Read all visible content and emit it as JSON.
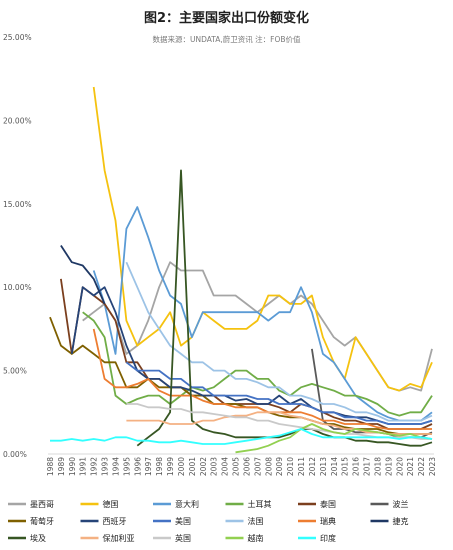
{
  "chart_data": {
    "type": "line",
    "title": "图2：主要国家出口份额变化",
    "subtitle": "数据来源：UNDATA,蔚卫资讯 注：FOB价值",
    "xlabel": "",
    "ylabel": "",
    "ylim": [
      0,
      25
    ],
    "y_ticks": [
      "0.00%",
      "5.00%",
      "10.00%",
      "15.00%",
      "20.00%",
      "25.00%"
    ],
    "y_tick_values": [
      0,
      5,
      10,
      15,
      20,
      25
    ],
    "grid": false,
    "legend_position": "bottom",
    "x": [
      "1988",
      "1989",
      "1990",
      "1991",
      "1992",
      "1993",
      "1994",
      "1995",
      "1996",
      "1997",
      "1998",
      "1999",
      "2000",
      "2001",
      "2002",
      "2003",
      "2004",
      "2005",
      "2006",
      "2007",
      "2008",
      "2009",
      "2010",
      "2011",
      "2012",
      "2013",
      "2014",
      "2015",
      "2016",
      "2017",
      "2018",
      "2019",
      "2020",
      "2021",
      "2022",
      "2023"
    ],
    "series": [
      {
        "name": "墨西哥",
        "color": "#a5a5a5",
        "values": [
          null,
          null,
          null,
          8.0,
          8.5,
          9.0,
          8.0,
          6.0,
          6.5,
          8.0,
          10.0,
          11.5,
          11.0,
          11.0,
          11.0,
          9.5,
          9.5,
          9.5,
          9.0,
          8.5,
          9.0,
          9.5,
          9.0,
          9.5,
          9.0,
          8.0,
          7.0,
          6.5,
          7.0,
          6.0,
          5.0,
          4.0,
          3.8,
          4.0,
          3.8,
          6.3
        ]
      },
      {
        "name": "德国",
        "color": "#f5c20f",
        "values": [
          null,
          null,
          null,
          null,
          22.0,
          17.0,
          14.0,
          8.0,
          6.5,
          7.0,
          7.5,
          8.5,
          6.5,
          7.0,
          8.5,
          8.0,
          7.5,
          7.5,
          7.5,
          8.0,
          9.5,
          9.5,
          9.0,
          9.0,
          9.5,
          7.0,
          5.5,
          4.5,
          7.0,
          6.0,
          5.0,
          4.0,
          3.8,
          4.2,
          4.0,
          5.5
        ]
      },
      {
        "name": "意大利",
        "color": "#5b9bd5",
        "values": [
          null,
          null,
          null,
          null,
          11.0,
          9.0,
          6.0,
          13.5,
          14.8,
          13.0,
          11.0,
          9.5,
          9.0,
          7.0,
          8.5,
          8.5,
          8.5,
          8.5,
          8.5,
          8.5,
          8.0,
          8.5,
          8.5,
          10.0,
          8.5,
          6.0,
          5.5,
          4.5,
          3.5,
          3.0,
          2.5,
          2.2,
          2.0,
          2.0,
          2.0,
          2.5
        ]
      },
      {
        "name": "土耳其",
        "color": "#70ad47",
        "values": [
          null,
          null,
          null,
          8.5,
          8.0,
          7.0,
          3.5,
          3.0,
          3.3,
          3.5,
          3.5,
          3.0,
          3.5,
          4.0,
          3.8,
          4.0,
          4.5,
          5.0,
          5.0,
          4.5,
          4.5,
          3.8,
          3.5,
          4.0,
          4.2,
          4.0,
          3.8,
          3.5,
          3.5,
          3.3,
          3.0,
          2.5,
          2.3,
          2.5,
          2.5,
          3.5
        ]
      },
      {
        "name": "泰国",
        "color": "#7b3f1e",
        "values": [
          null,
          10.5,
          6.0,
          10.0,
          9.5,
          9.0,
          8.0,
          5.5,
          5.5,
          4.5,
          4.5,
          4.0,
          4.0,
          3.5,
          3.5,
          3.5,
          3.0,
          3.0,
          3.0,
          3.0,
          3.0,
          2.8,
          2.5,
          3.0,
          2.8,
          2.5,
          2.2,
          2.0,
          2.0,
          1.8,
          1.8,
          1.5,
          1.5,
          1.5,
          1.5,
          1.8
        ]
      },
      {
        "name": "波兰",
        "color": "#595959",
        "values": [
          null,
          null,
          null,
          null,
          null,
          null,
          null,
          null,
          null,
          null,
          null,
          null,
          null,
          null,
          null,
          null,
          null,
          null,
          null,
          null,
          null,
          null,
          null,
          null,
          6.3,
          2.0,
          1.5,
          1.5,
          1.3,
          1.3,
          1.3,
          1.2,
          1.0,
          1.0,
          1.0,
          1.3
        ]
      },
      {
        "name": "葡萄牙",
        "color": "#7f6000",
        "values": [
          8.2,
          6.5,
          6.0,
          6.5,
          6.0,
          5.5,
          5.5,
          4.0,
          4.0,
          4.5,
          4.0,
          4.0,
          4.0,
          3.5,
          3.5,
          3.0,
          3.0,
          3.0,
          2.8,
          2.8,
          2.5,
          2.3,
          2.2,
          2.2,
          2.0,
          1.8,
          1.8,
          1.6,
          1.5,
          1.5,
          1.5,
          1.3,
          1.2,
          1.2,
          1.2,
          1.2
        ]
      },
      {
        "name": "西班牙",
        "color": "#264478",
        "values": [
          null,
          null,
          6.0,
          10.0,
          9.5,
          10.0,
          8.5,
          6.5,
          5.0,
          4.5,
          4.5,
          4.0,
          4.0,
          3.8,
          3.5,
          3.5,
          3.5,
          3.2,
          3.3,
          3.0,
          3.0,
          3.5,
          3.0,
          3.3,
          2.8,
          2.5,
          2.5,
          2.3,
          2.2,
          2.2,
          2.0,
          1.8,
          1.8,
          1.8,
          1.8,
          2.0
        ]
      },
      {
        "name": "美国",
        "color": "#4472c4",
        "values": [
          null,
          null,
          null,
          null,
          null,
          null,
          null,
          5.5,
          5.0,
          5.0,
          5.0,
          4.5,
          4.5,
          4.0,
          4.0,
          3.5,
          3.5,
          3.5,
          3.5,
          3.3,
          3.3,
          3.0,
          3.0,
          3.0,
          2.8,
          2.5,
          2.5,
          2.2,
          2.2,
          2.0,
          2.0,
          1.8,
          1.8,
          1.8,
          1.8,
          2.0
        ]
      },
      {
        "name": "法国",
        "color": "#9dc3e6",
        "values": [
          null,
          null,
          null,
          null,
          null,
          null,
          null,
          11.5,
          10.0,
          8.5,
          7.5,
          6.5,
          6.0,
          5.5,
          5.5,
          5.0,
          5.0,
          4.5,
          4.5,
          4.3,
          4.0,
          4.0,
          3.5,
          3.5,
          3.3,
          3.0,
          3.0,
          2.8,
          2.5,
          2.5,
          2.3,
          2.0,
          2.0,
          2.0,
          2.0,
          2.3
        ]
      },
      {
        "name": "瑞典",
        "color": "#ed7d31",
        "values": [
          null,
          null,
          null,
          null,
          7.5,
          4.5,
          4.0,
          4.0,
          4.2,
          4.5,
          3.8,
          3.5,
          3.5,
          3.5,
          3.2,
          3.0,
          3.0,
          2.8,
          2.8,
          2.8,
          2.5,
          2.5,
          2.5,
          2.5,
          2.3,
          2.0,
          2.0,
          1.8,
          1.8,
          1.8,
          1.6,
          1.5,
          1.5,
          1.5,
          1.5,
          1.5
        ]
      },
      {
        "name": "捷克",
        "color": "#1f3864",
        "values": [
          null,
          12.5,
          11.5,
          11.3,
          10.5,
          9.0,
          null,
          null,
          null,
          null,
          null,
          null,
          null,
          null,
          null,
          null,
          null,
          null,
          null,
          null,
          null,
          null,
          null,
          null,
          null,
          null,
          null,
          null,
          null,
          null,
          null,
          null,
          null,
          null,
          null,
          null
        ]
      },
      {
        "name": "埃及",
        "color": "#375623",
        "values": [
          null,
          null,
          null,
          null,
          null,
          null,
          null,
          null,
          0.5,
          1.0,
          1.5,
          2.5,
          17.0,
          2.0,
          1.5,
          1.3,
          1.2,
          1.0,
          1.0,
          1.0,
          1.0,
          1.0,
          1.2,
          1.5,
          1.5,
          1.2,
          1.0,
          1.0,
          0.8,
          0.8,
          0.7,
          0.7,
          0.6,
          0.5,
          0.5,
          0.7
        ]
      },
      {
        "name": "保加利亚",
        "color": "#f4b183",
        "values": [
          null,
          null,
          null,
          null,
          null,
          null,
          null,
          2.0,
          2.0,
          2.0,
          2.0,
          1.8,
          1.8,
          1.8,
          2.0,
          2.0,
          2.2,
          2.3,
          2.3,
          2.5,
          2.5,
          2.5,
          2.3,
          2.2,
          2.0,
          1.8,
          1.7,
          1.5,
          1.5,
          1.3,
          1.3,
          1.2,
          1.2,
          1.2,
          1.2,
          1.2
        ]
      },
      {
        "name": "英国",
        "color": "#c9c9c9",
        "values": [
          null,
          null,
          null,
          null,
          null,
          null,
          null,
          3.0,
          3.0,
          2.8,
          2.8,
          2.7,
          2.7,
          2.5,
          2.5,
          2.4,
          2.3,
          2.2,
          2.2,
          2.0,
          2.0,
          1.8,
          1.7,
          1.6,
          1.5,
          1.4,
          1.3,
          1.2,
          1.2,
          1.1,
          1.0,
          1.0,
          1.0,
          1.0,
          0.9,
          0.9
        ]
      },
      {
        "name": "越南",
        "color": "#92d050",
        "values": [
          null,
          null,
          null,
          null,
          null,
          null,
          null,
          null,
          null,
          null,
          null,
          null,
          null,
          null,
          null,
          null,
          null,
          0.1,
          0.2,
          0.3,
          0.5,
          0.8,
          1.0,
          1.5,
          1.8,
          1.5,
          1.3,
          1.2,
          1.5,
          1.4,
          1.3,
          1.2,
          1.1,
          1.2,
          1.0,
          0.9
        ]
      },
      {
        "name": "印度",
        "color": "#33ffff",
        "values": [
          0.8,
          0.8,
          0.9,
          0.8,
          0.9,
          0.8,
          1.0,
          1.0,
          0.8,
          0.8,
          0.7,
          0.7,
          0.8,
          0.7,
          0.6,
          0.6,
          0.6,
          0.7,
          0.8,
          0.9,
          1.0,
          1.1,
          1.3,
          1.5,
          1.2,
          1.0,
          1.0,
          1.0,
          1.0,
          1.0,
          1.0,
          1.0,
          0.9,
          1.0,
          1.0,
          0.9
        ]
      }
    ]
  }
}
